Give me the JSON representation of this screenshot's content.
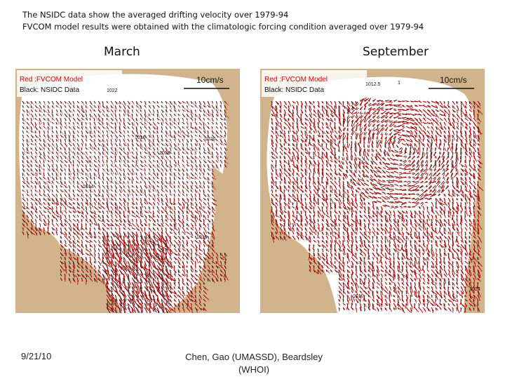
{
  "header": {
    "line1": "The NSIDC data  show  the averaged drifting velocity over 1979-94",
    "line2": "FVCOM model results were obtained with the climatologic forcing condition averaged over 1979-94"
  },
  "panels": [
    {
      "title": "March",
      "legend_red": "Red :FVCOM Model",
      "legend_black": "Black: NSIDC Data",
      "scale_label": "10cm/s",
      "contour_labels": [
        "1022",
        "1020",
        "1018",
        "1016",
        "1019",
        "1014"
      ]
    },
    {
      "title": "September",
      "legend_red": "Red :FVCOM Model",
      "legend_black": "Black: NSIDC Data",
      "scale_label": "10cm/s",
      "contour_labels": [
        "1012.5",
        "1",
        "1010",
        "1010"
      ]
    }
  ],
  "colors": {
    "land": "#d2b48c",
    "ocean": "#ffffff",
    "model_vectors": "#e00000",
    "data_vectors": "#111111",
    "legend_red": "#d40000"
  },
  "footer": {
    "date": "9/21/10",
    "credit": "Chen, Gao (UMASSD), Beardsley (WHOI)"
  }
}
